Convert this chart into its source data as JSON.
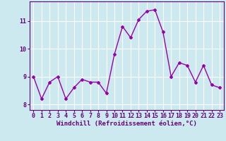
{
  "x": [
    0,
    1,
    2,
    3,
    4,
    5,
    6,
    7,
    8,
    9,
    10,
    11,
    12,
    13,
    14,
    15,
    16,
    17,
    18,
    19,
    20,
    21,
    22,
    23
  ],
  "y": [
    9.0,
    8.2,
    8.8,
    9.0,
    8.2,
    8.6,
    8.9,
    8.8,
    8.8,
    8.4,
    9.8,
    10.8,
    10.4,
    11.05,
    11.35,
    11.4,
    10.6,
    9.0,
    9.5,
    9.4,
    8.8,
    9.4,
    8.7,
    8.6
  ],
  "line_color": "#9900aa",
  "marker": "D",
  "markersize": 2,
  "linewidth": 1.0,
  "background_color": "#cce9f0",
  "grid_color": "#ffffff",
  "xlabel": "Windchill (Refroidissement éolien,°C)",
  "xlabel_fontsize": 6.5,
  "tick_fontsize": 6,
  "ylim": [
    7.8,
    11.7
  ],
  "yticks": [
    8,
    9,
    10,
    11
  ],
  "xticks": [
    0,
    1,
    2,
    3,
    4,
    5,
    6,
    7,
    8,
    9,
    10,
    11,
    12,
    13,
    14,
    15,
    16,
    17,
    18,
    19,
    20,
    21,
    22,
    23
  ],
  "tick_color": "#660077",
  "axis_color": "#660077",
  "label_color": "#660077"
}
